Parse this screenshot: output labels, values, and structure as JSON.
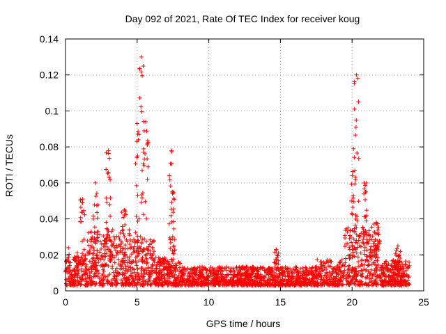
{
  "chart_data": {
    "type": "scatter",
    "title": "Day 092 of 2021, Rate Of TEC Index for receiver koug",
    "xlabel": "GPS time / hours",
    "ylabel": "ROTI / TECUs",
    "xlim": [
      0,
      25
    ],
    "ylim": [
      0,
      0.14
    ],
    "xticks": [
      0,
      5,
      10,
      15,
      20,
      25
    ],
    "yticks": [
      0,
      0.02,
      0.04,
      0.06,
      0.08,
      0.1,
      0.12,
      0.14
    ],
    "xtick_labels": [
      "0",
      "5",
      "10",
      "15",
      "20",
      "25"
    ],
    "ytick_labels": [
      "0",
      "0.02",
      "0.04",
      "0.06",
      "0.08",
      "0.1",
      "0.12",
      "0.14"
    ],
    "grid": true,
    "marker": "+",
    "color": "#ff0000",
    "data_range_x": [
      0,
      24
    ],
    "notable_peaks": [
      {
        "x": 1.2,
        "y": 0.051
      },
      {
        "x": 2.1,
        "y": 0.06
      },
      {
        "x": 3.0,
        "y": 0.078
      },
      {
        "x": 4.1,
        "y": 0.045
      },
      {
        "x": 5.0,
        "y": 0.093
      },
      {
        "x": 5.3,
        "y": 0.13
      },
      {
        "x": 5.6,
        "y": 0.094
      },
      {
        "x": 7.4,
        "y": 0.078
      },
      {
        "x": 7.5,
        "y": 0.055
      },
      {
        "x": 14.7,
        "y": 0.023
      },
      {
        "x": 20.1,
        "y": 0.079
      },
      {
        "x": 20.3,
        "y": 0.12
      },
      {
        "x": 21.0,
        "y": 0.06
      },
      {
        "x": 21.7,
        "y": 0.038
      },
      {
        "x": 23.2,
        "y": 0.025
      }
    ]
  }
}
